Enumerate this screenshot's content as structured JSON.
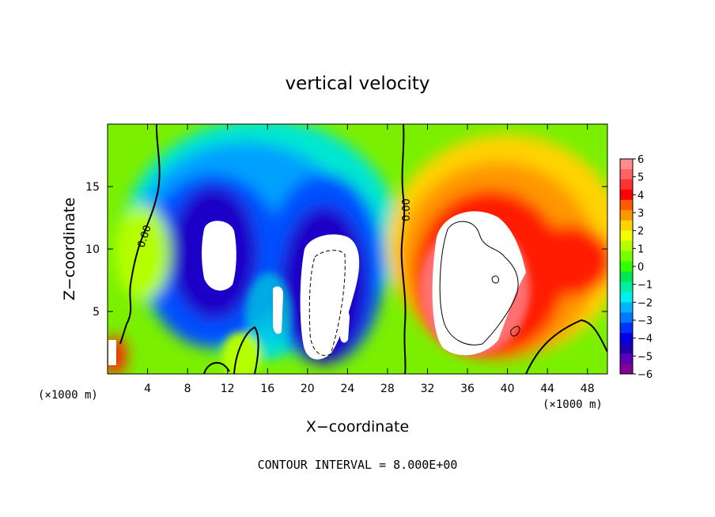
{
  "chart_data": {
    "type": "heatmap",
    "title": "vertical velocity",
    "xlabel": "X−coordinate",
    "ylabel": "Z−coordinate",
    "x_unit_label": "(×1000 m)",
    "z_unit_label": "(×1000 m)",
    "footer": "CONTOUR INTERVAL = 8.000E+00",
    "xlim": [
      0,
      50
    ],
    "ylim": [
      0,
      20
    ],
    "x_ticks": [
      "4",
      "8",
      "12",
      "16",
      "20",
      "24",
      "28",
      "32",
      "36",
      "40",
      "44",
      "48"
    ],
    "x_tick_values": [
      4,
      8,
      12,
      16,
      20,
      24,
      28,
      32,
      36,
      40,
      44,
      48
    ],
    "y_ticks": [
      "5",
      "10",
      "15"
    ],
    "y_tick_values": [
      5,
      10,
      15
    ],
    "colorbar": {
      "range": [
        -6,
        6
      ],
      "tick_labels": [
        "6",
        "5",
        "4",
        "3",
        "2",
        "1",
        "0",
        "−1",
        "−2",
        "−3",
        "−4",
        "−5",
        "−6"
      ],
      "tick_values": [
        6,
        5,
        4,
        3,
        2,
        1,
        0,
        -1,
        -2,
        -3,
        -4,
        -5,
        -6
      ],
      "colors": [
        "#ff8c8c",
        "#ff6464",
        "#ff3232",
        "#ff0000",
        "#ff5a00",
        "#ff9600",
        "#ffd200",
        "#f0ff00",
        "#b4ff00",
        "#78ff00",
        "#32ff00",
        "#00e650",
        "#00f0a0",
        "#00f0f0",
        "#00b4ff",
        "#0078ff",
        "#0032ff",
        "#0000e6",
        "#1e00b4",
        "#5a00b4",
        "#820096"
      ]
    },
    "contour_labels": [
      "0.00",
      "0.00"
    ],
    "zero_contour_x_positions": [
      4.5,
      29.5
    ]
  }
}
